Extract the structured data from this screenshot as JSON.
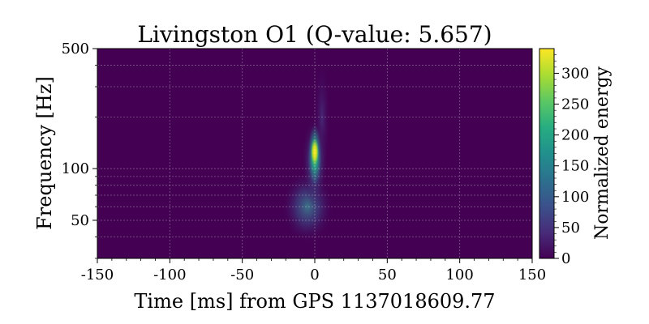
{
  "chart_data": {
    "type": "heatmap",
    "title": "Livingston O1 (Q-value: 5.657)",
    "xlabel": "Time [ms] from GPS 1137018609.77",
    "ylabel": "Frequency [Hz]",
    "xlim": [
      -150,
      150
    ],
    "ylim": [
      30,
      500
    ],
    "yscale": "log",
    "grid": true,
    "x_ticks": [
      -150,
      -100,
      -50,
      0,
      50,
      100,
      150
    ],
    "x_tick_labels": [
      "-150",
      "-100",
      "-50",
      "0",
      "50",
      "100",
      "150"
    ],
    "y_ticks": [
      50,
      100,
      500
    ],
    "y_tick_labels": [
      "50",
      "100",
      "500"
    ],
    "colorbar": {
      "label": "Normalized energy",
      "range": [
        0,
        340
      ],
      "ticks": [
        0,
        50,
        100,
        150,
        200,
        250,
        300
      ],
      "tick_labels": [
        "0",
        "50",
        "100",
        "150",
        "200",
        "250",
        "300"
      ],
      "colormap": "viridis"
    },
    "peak": {
      "time_ms": 0,
      "frequency_hz": 125,
      "energy": 335
    }
  }
}
